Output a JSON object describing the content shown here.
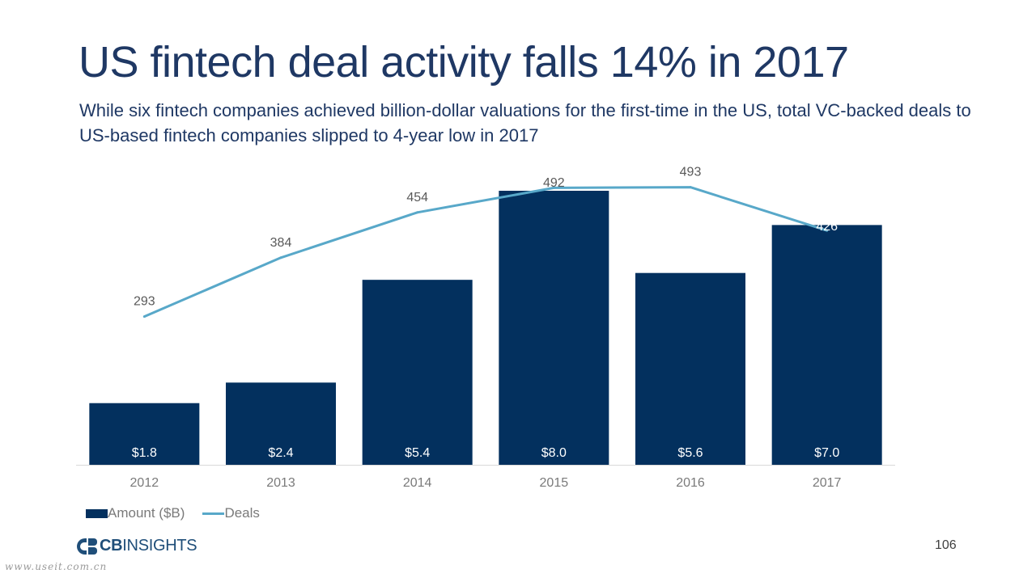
{
  "slide": {
    "title": "US fintech deal activity falls 14% in 2017",
    "subtitle": "While six fintech companies achieved billion-dollar valuations for the first-time in the US, total VC-backed deals to US-based fintech companies slipped to 4-year low in 2017",
    "page_number": "106",
    "logo": {
      "brand_bold": "CB",
      "brand_rest": "INSIGHTS",
      "icon": "cb-insights-logo-icon"
    },
    "watermark": "www.useit.com.cn"
  },
  "colors": {
    "bar": "#03305e",
    "line": "#58a8c9",
    "title": "#1f3864",
    "axis_text": "#7a7a7a"
  },
  "chart_data": {
    "type": "bar",
    "categories": [
      "2012",
      "2013",
      "2014",
      "2015",
      "2016",
      "2017"
    ],
    "series": [
      {
        "name": "Amount ($B)",
        "type": "bar",
        "axis": "left",
        "values": [
          1.8,
          2.4,
          5.4,
          8.0,
          5.6,
          7.0
        ],
        "labels": [
          "$1.8",
          "$2.4",
          "$5.4",
          "$8.0",
          "$5.6",
          "$7.0"
        ]
      },
      {
        "name": "Deals",
        "type": "line",
        "axis": "right",
        "values": [
          293,
          384,
          454,
          492,
          493,
          426
        ],
        "labels": [
          "293",
          "384",
          "454",
          "492",
          "493",
          "426"
        ]
      }
    ],
    "ylim_left": [
      0,
      8.0
    ],
    "ylim_right": [
      0,
      600
    ],
    "legend": "bottom-left",
    "grid": false
  }
}
